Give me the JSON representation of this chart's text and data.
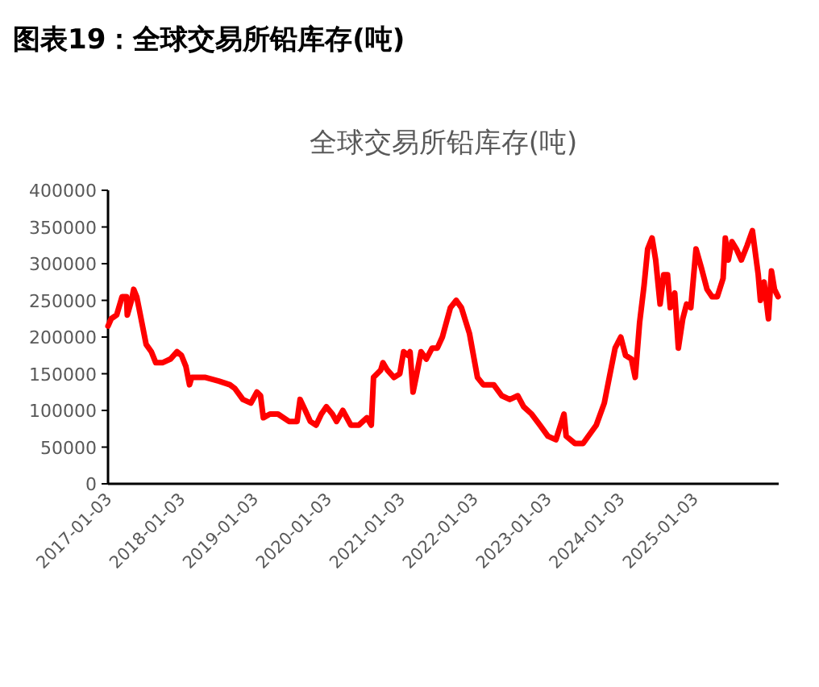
{
  "chart_data": {
    "type": "line",
    "title": "图表19：全球交易所铅库存(吨)",
    "subtitle": "全球交易所铅库存(吨)",
    "series": [
      {
        "color": "#ff0000",
        "x": [
          "2017-01-03",
          "2017-01-19",
          "2017-02-15",
          "2017-03-14",
          "2017-04-05",
          "2017-04-09",
          "2017-04-30",
          "2017-05-11",
          "2017-05-26",
          "2017-06-06",
          "2017-06-24",
          "2017-07-12",
          "2017-08-07",
          "2017-08-29",
          "2017-10-01",
          "2017-11-10",
          "2017-12-13",
          "2018-01-04",
          "2018-01-26",
          "2018-02-13",
          "2018-02-24",
          "2018-03-18",
          "2018-05-04",
          "2018-07-09",
          "2018-09-02",
          "2018-09-27",
          "2018-11-06",
          "2018-12-16",
          "2019-01-15",
          "2019-02-02",
          "2019-02-16",
          "2019-03-21",
          "2019-04-30",
          "2019-06-24",
          "2019-08-03",
          "2019-08-18",
          "2019-09-13",
          "2019-10-08",
          "2019-11-06",
          "2019-12-02",
          "2019-12-27",
          "2020-01-26",
          "2020-02-16",
          "2020-03-18",
          "2020-04-27",
          "2020-06-06",
          "2020-07-16",
          "2020-08-07",
          "2020-08-18",
          "2020-09-23",
          "2020-10-04",
          "2020-10-26",
          "2020-11-28",
          "2020-12-27",
          "2021-01-15",
          "2021-02-06",
          "2021-02-16",
          "2021-03-03",
          "2021-03-18",
          "2021-04-12",
          "2021-05-08",
          "2021-06-06",
          "2021-07-02",
          "2021-07-27",
          "2021-09-05",
          "2021-10-04",
          "2021-10-30",
          "2021-12-09",
          "2022-01-18",
          "2022-02-16",
          "2022-04-09",
          "2022-05-19",
          "2022-06-28",
          "2022-08-07",
          "2022-09-05",
          "2022-10-15",
          "2022-11-25",
          "2023-01-04",
          "2023-02-13",
          "2023-03-25",
          "2023-04-05",
          "2023-05-19",
          "2023-06-28",
          "2023-08-07",
          "2023-09-02",
          "2023-10-12",
          "2023-11-06",
          "2023-12-05",
          "2024-01-02",
          "2024-01-26",
          "2024-02-24",
          "2024-03-14",
          "2024-04-05",
          "2024-04-27",
          "2024-05-15",
          "2024-06-06",
          "2024-06-24",
          "2024-07-16",
          "2024-08-03",
          "2024-08-22",
          "2024-09-05",
          "2024-09-27",
          "2024-10-15",
          "2024-11-06",
          "2024-11-25",
          "2024-12-16",
          "2025-01-11",
          "2025-02-06",
          "2025-03-07",
          "2025-04-01",
          "2025-04-27",
          "2025-05-26",
          "2025-06-06",
          "2025-06-21",
          "2025-07-09",
          "2025-07-31",
          "2025-08-25",
          "2025-09-23",
          "2025-10-19",
          "2025-11-17",
          "2025-11-28",
          "2025-12-16",
          "2026-01-07",
          "2026-01-22",
          "2026-02-06",
          "2026-02-24"
        ],
        "values": [
          215000,
          225000,
          230000,
          255000,
          255000,
          230000,
          250000,
          265000,
          255000,
          240000,
          215000,
          190000,
          180000,
          165000,
          165000,
          170000,
          180000,
          175000,
          160000,
          135000,
          145000,
          145000,
          145000,
          140000,
          135000,
          130000,
          115000,
          110000,
          125000,
          120000,
          90000,
          95000,
          95000,
          85000,
          85000,
          115000,
          100000,
          85000,
          80000,
          95000,
          105000,
          95000,
          85000,
          100000,
          80000,
          80000,
          90000,
          80000,
          145000,
          155000,
          165000,
          155000,
          145000,
          150000,
          180000,
          175000,
          180000,
          125000,
          145000,
          180000,
          170000,
          185000,
          185000,
          200000,
          240000,
          250000,
          240000,
          205000,
          145000,
          135000,
          135000,
          120000,
          115000,
          120000,
          105000,
          95000,
          80000,
          65000,
          60000,
          95000,
          65000,
          55000,
          55000,
          70000,
          80000,
          110000,
          145000,
          185000,
          200000,
          175000,
          170000,
          145000,
          220000,
          270000,
          320000,
          335000,
          305000,
          245000,
          285000,
          285000,
          240000,
          260000,
          185000,
          225000,
          245000,
          240000,
          320000,
          295000,
          265000,
          255000,
          255000,
          280000,
          335000,
          305000,
          330000,
          320000,
          305000,
          325000,
          345000,
          285000,
          250000,
          275000,
          225000,
          290000,
          265000,
          255000
        ]
      }
    ],
    "xlim": [
      "2017-01-03",
      "2026-02-27"
    ],
    "xticks": [
      "2017-01-03",
      "2018-01-03",
      "2019-01-03",
      "2020-01-03",
      "2021-01-03",
      "2022-01-03",
      "2023-01-03",
      "2024-01-03",
      "2025-01-03"
    ],
    "ylim": [
      0,
      400000
    ],
    "yticks": [
      0,
      50000,
      100000,
      150000,
      200000,
      250000,
      300000,
      350000,
      400000
    ],
    "grid": false,
    "marker": "none",
    "line_style": "solid"
  }
}
